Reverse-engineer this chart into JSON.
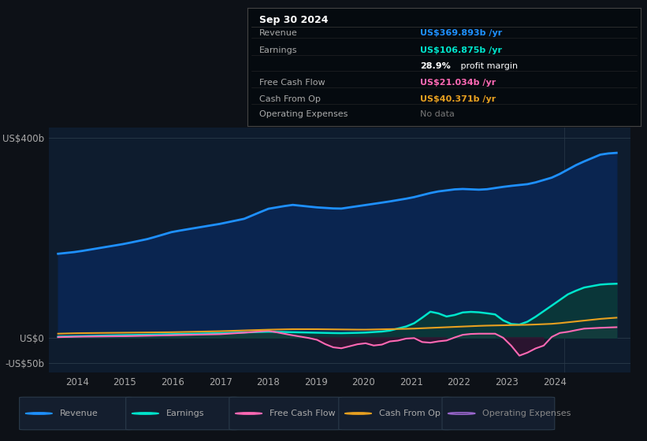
{
  "bg_color": "#0d1117",
  "plot_bg_color": "#0e1c2e",
  "revenue_color": "#1e90ff",
  "earnings_color": "#00e5cc",
  "fcf_color": "#ff69b4",
  "cashop_color": "#e8a020",
  "opex_color": "#9966cc",
  "revenue_fill": "#0a2550",
  "earnings_fill": "#0a3a35",
  "fcf_fill_neg": "#2a1020",
  "grid_color": "#2a3a4a",
  "tick_label_color": "#aaaaaa",
  "legend_bg": "#141e2e",
  "legend_border": "#2a3a4a",
  "info_box_bg": "#050a0f",
  "info_box_border": "#444444",
  "ytick_labels": [
    "-US$50b",
    "US$0",
    "US$400b"
  ],
  "xtick_labels": [
    "2014",
    "2015",
    "2016",
    "2017",
    "2018",
    "2019",
    "2020",
    "2021",
    "2022",
    "2023",
    "2024"
  ],
  "xtick_vals": [
    2014,
    2015,
    2016,
    2017,
    2018,
    2019,
    2020,
    2021,
    2022,
    2023,
    2024
  ],
  "info_date": "Sep 30 2024",
  "info_rows": [
    {
      "label": "Revenue",
      "value": "US$369.893b /yr",
      "value_color": "#1e90ff"
    },
    {
      "label": "Earnings",
      "value": "US$106.875b /yr",
      "value_color": "#00e5cc"
    },
    {
      "label": "",
      "value": "28.9% profit margin",
      "value_color": "#ffffff",
      "bold_part": "28.9%"
    },
    {
      "label": "Free Cash Flow",
      "value": "US$21.034b /yr",
      "value_color": "#ff69b4"
    },
    {
      "label": "Cash From Op",
      "value": "US$40.371b /yr",
      "value_color": "#e8a020"
    },
    {
      "label": "Operating Expenses",
      "value": "No data",
      "value_color": "#777777"
    }
  ],
  "legend_items": [
    {
      "label": "Revenue",
      "color": "#1e90ff",
      "hollow": false
    },
    {
      "label": "Earnings",
      "color": "#00e5cc",
      "hollow": false
    },
    {
      "label": "Free Cash Flow",
      "color": "#ff69b4",
      "hollow": false
    },
    {
      "label": "Cash From Op",
      "color": "#e8a020",
      "hollow": false
    },
    {
      "label": "Operating Expenses",
      "color": "#9966cc",
      "hollow": true
    }
  ]
}
